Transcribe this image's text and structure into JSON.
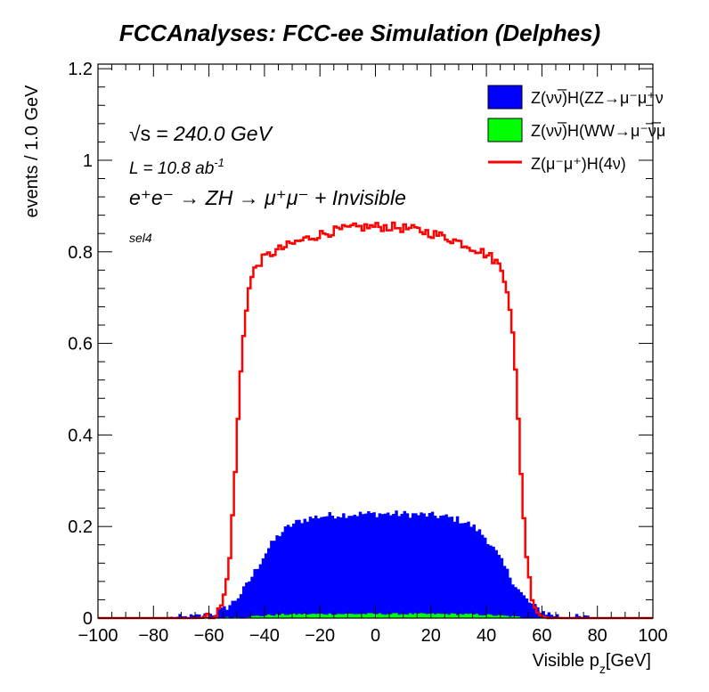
{
  "chart_data": {
    "type": "histogram",
    "title": "FCCAnalyses: FCC-ee Simulation (Delphes)",
    "xlabel_main": "Visible p",
    "xlabel_sub": "z",
    "xlabel_unit": "[GeV]",
    "ylabel": "events / 1.0 GeV",
    "xlim": [
      -100,
      100
    ],
    "ylim": [
      0,
      1.21
    ],
    "x_ticks": [
      "−100",
      "−80",
      "−60",
      "−40",
      "−20",
      "0",
      "20",
      "40",
      "60",
      "80",
      "100"
    ],
    "x_tick_values": [
      -100,
      -80,
      -60,
      -40,
      -20,
      0,
      20,
      40,
      60,
      80,
      100
    ],
    "y_ticks": [
      "0",
      "0.2",
      "0.4",
      "0.6",
      "0.8",
      "1",
      "1.2"
    ],
    "y_tick_values": [
      0,
      0.2,
      0.4,
      0.6,
      0.8,
      1.0,
      1.2
    ],
    "bin_width": 1.0,
    "series": [
      {
        "name": "Z(νν̅)H(ZZ→μ⁻μ⁺ν",
        "style": "filled",
        "color": "#0000ff",
        "profile": {
          "center": 2,
          "half_width": 45,
          "edge_width": 5.2,
          "plateau": 0.228,
          "curvature": 0.06,
          "noise": 0.008
        }
      },
      {
        "name": "Z(νν̅)H(WW→μ⁻ν̅μ",
        "style": "filled",
        "color": "#00ff00",
        "profile": {
          "center": 2,
          "half_width": 45,
          "edge_width": 5.2,
          "plateau": 0.009,
          "curvature": 0.06,
          "noise": 0.002
        }
      },
      {
        "name": "Z(μ⁻μ⁺)H(4ν)",
        "style": "step-line",
        "color": "#ff0000",
        "profile": {
          "center": 1,
          "half_width": 51,
          "edge_width": 1.7,
          "plateau": 0.855,
          "curvature": 0.12,
          "noise": 0.01
        }
      }
    ],
    "grid": false,
    "legend": "top-right",
    "annotations": {
      "sqrt": "√s",
      "energy": "= 240.0 GeV",
      "lumi_pre": "L = 10.8 ab",
      "lumi_sup": "-1",
      "process": "e⁺e⁻ → ZH → μ⁺μ⁻ + Invisible",
      "selection": "sel4"
    }
  }
}
